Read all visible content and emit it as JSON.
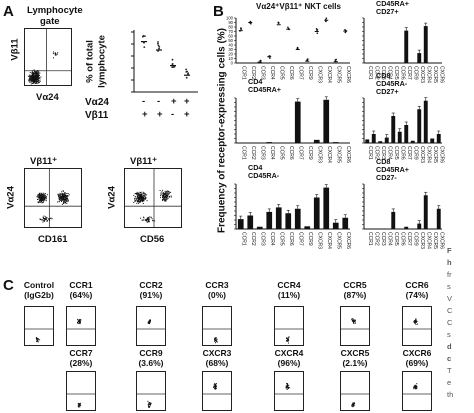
{
  "figure": {
    "panel_a": {
      "letter": "A",
      "gate_label": [
        "Lymphocyte",
        "gate"
      ],
      "dot_plot_y_label": "Vβ11",
      "dot_plot_x_label": "Vα24",
      "strip_y_label": [
        "% of total",
        "lymphocyte"
      ],
      "strip_row_labels": [
        "Vα24",
        "Vβ11"
      ],
      "strip_signs": [
        [
          "-",
          "-",
          "+",
          "+"
        ],
        [
          "+",
          "+",
          "-",
          "+"
        ]
      ],
      "lower_plots": [
        {
          "title": "Vβ11⁺",
          "y_label": "Vα24",
          "x_label": "CD161"
        },
        {
          "title": "Vβ11⁺",
          "y_label": "Vα24",
          "x_label": "CD56"
        }
      ]
    },
    "panel_b": {
      "letter": "B",
      "y_label": "Frequency of receptor-expressing cells (%)",
      "main_title": "Vα24⁺Vβ11⁺ NKT cells",
      "x_categories": [
        "CCR1",
        "CCR2",
        "CCR3",
        "CCR4",
        "CCR5",
        "CCR6",
        "CCR7",
        "CCR9",
        "CXCR3",
        "CXCR4",
        "CXCR5",
        "CXCR6"
      ],
      "y_ticks": [
        "100",
        "90",
        "80",
        "70",
        "60",
        "50",
        "40",
        "30",
        "20",
        "10",
        "0"
      ]
    },
    "panel_c": {
      "letter": "C",
      "control_label": [
        "Control",
        "(IgG2b)"
      ],
      "row1": [
        {
          "name": "CCR1",
          "pct": "(64%)"
        },
        {
          "name": "CCR2",
          "pct": "(91%)"
        },
        {
          "name": "CCR3",
          "pct": "(0%)"
        },
        {
          "name": "CCR4",
          "pct": "(11%)"
        },
        {
          "name": "CCR5",
          "pct": "(87%)"
        },
        {
          "name": "CCR6",
          "pct": "(74%)"
        }
      ],
      "row2": [
        {
          "name": "CCR7",
          "pct": "(28%)"
        },
        {
          "name": "CCR9",
          "pct": "(3.6%)"
        },
        {
          "name": "CXCR3",
          "pct": "(68%)"
        },
        {
          "name": "CXCR4",
          "pct": "(96%)"
        },
        {
          "name": "CXCR5",
          "pct": "(2.1%)"
        },
        {
          "name": "CXCR6",
          "pct": "(69%)"
        }
      ]
    },
    "cutoff_text": [
      "F",
      "h",
      "fr",
      "s",
      "V",
      "C",
      "C",
      "s",
      "d",
      "c",
      "T",
      "e",
      "th"
    ]
  },
  "chart_data": [
    {
      "type": "scatter",
      "title": "Vα24⁺Vβ11⁺ NKT cells",
      "categories": [
        "CCR1",
        "CCR2",
        "CCR3",
        "CCR4",
        "CCR5",
        "CCR6",
        "CCR7",
        "CCR9",
        "CXCR3",
        "CXCR4",
        "CXCR5",
        "CXCR6"
      ],
      "series": [
        {
          "values": [
            72,
            90,
            2,
            14,
            85,
            75,
            30,
            4,
            70,
            95,
            3,
            71
          ]
        }
      ],
      "ylim": [
        0,
        100
      ],
      "ylabel": "Frequency of receptor-expressing cells (%)"
    },
    {
      "type": "bar",
      "title": "CD8 CD45RA+ CD27+",
      "categories": [
        "CCR1",
        "CCR2",
        "CCR3",
        "CCR4",
        "CCR5",
        "CCR6",
        "CCR7",
        "CCR9",
        "CXCR3",
        "CXCR4",
        "CXCR5",
        "CXCR6"
      ],
      "values": [
        1,
        1,
        1,
        1,
        1,
        1,
        72,
        1,
        22,
        82,
        1,
        1
      ],
      "ylim": [
        0,
        100
      ]
    },
    {
      "type": "bar",
      "title": "CD4 CD45RA+",
      "categories": [
        "CCR1",
        "CCR2",
        "CCR3",
        "CCR4",
        "CCR5",
        "CCR6",
        "CCR7",
        "CCR9",
        "CXCR3",
        "CXCR4",
        "CXCR5",
        "CXCR6"
      ],
      "values": [
        1,
        1,
        1,
        2,
        1,
        1,
        92,
        1,
        7,
        96,
        2,
        1
      ],
      "ylim": [
        0,
        100
      ]
    },
    {
      "type": "bar",
      "title": "CD8 CD45RA- CD27+",
      "categories": [
        "CCR1",
        "CCR2",
        "CCR3",
        "CCR4",
        "CCR5",
        "CCR6",
        "CCR7",
        "CCR9",
        "CXCR3",
        "CXCR4",
        "CXCR5",
        "CXCR6"
      ],
      "values": [
        8,
        20,
        4,
        12,
        60,
        25,
        40,
        5,
        75,
        94,
        10,
        20
      ],
      "ylim": [
        0,
        100
      ]
    },
    {
      "type": "bar",
      "title": "CD4 CD45RA-",
      "categories": [
        "CCR1",
        "CCR2",
        "CCR3",
        "CCR4",
        "CCR5",
        "CCR6",
        "CCR7",
        "CCR9",
        "CXCR3",
        "CXCR4",
        "CXCR5",
        "CXCR6"
      ],
      "values": [
        22,
        30,
        5,
        38,
        48,
        35,
        45,
        6,
        70,
        92,
        14,
        25
      ],
      "ylim": [
        0,
        100
      ]
    },
    {
      "type": "bar",
      "title": "CD8 CD45RA+ CD27-",
      "categories": [
        "CCR1",
        "CCR2",
        "CCR3",
        "CCR4",
        "CCR5",
        "CCR6",
        "CCR7",
        "CCR9",
        "CXCR3",
        "CXCR4",
        "CXCR5",
        "CXCR6"
      ],
      "values": [
        1,
        1,
        1,
        1,
        38,
        1,
        5,
        1,
        12,
        75,
        1,
        45
      ],
      "ylim": [
        0,
        100
      ]
    },
    {
      "type": "scatter",
      "title": "",
      "categories": [
        "Vα24- Vβ11+",
        "Vα24- Vβ11+",
        "Vα24+ Vβ11-",
        "Vα24+ Vβ11+"
      ],
      "values": [
        0.42,
        0.35,
        0.22,
        0.14
      ],
      "ylabel": "% of total lymphocyte"
    }
  ]
}
